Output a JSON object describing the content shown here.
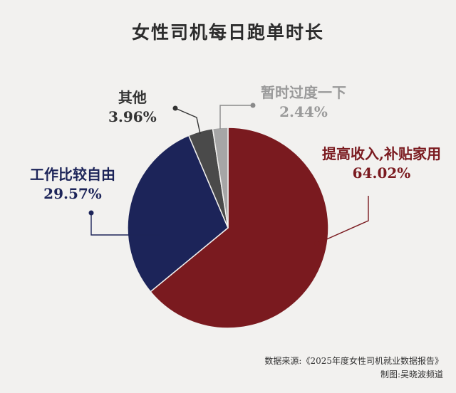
{
  "chart_data": {
    "type": "pie",
    "title": "女性司机每日跑单时长",
    "slices": [
      {
        "label": "提高收入,补贴家用",
        "value": 64.02,
        "value_text": "64.02%",
        "color": "#7a1a1f"
      },
      {
        "label": "工作比较自由",
        "value": 29.57,
        "value_text": "29.57%",
        "color": "#1c2459"
      },
      {
        "label": "其他",
        "value": 3.96,
        "value_text": "3.96%",
        "color": "#4a4a4a"
      },
      {
        "label": "暂时过度一下",
        "value": 2.44,
        "value_text": "2.44%",
        "color": "#a6a6a6"
      }
    ],
    "label_colors": [
      "#7a1a1f",
      "#1c2459",
      "#333333",
      "#9a9a9a"
    ]
  },
  "footer": {
    "source": "数据来源:《2025年度女性司机就业数据报告》",
    "credit": "制图:吴晓波频道"
  }
}
